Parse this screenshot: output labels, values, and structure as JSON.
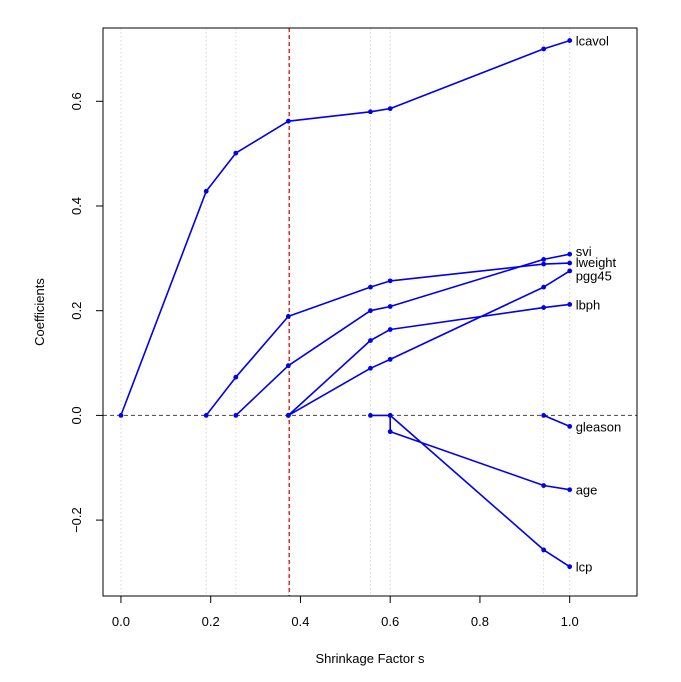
{
  "chart_data": {
    "type": "line",
    "title": "",
    "xlabel": "Shrinkage Factor s",
    "ylabel": "Coefficients",
    "xlim": [
      -0.04,
      1.15
    ],
    "ylim": [
      -0.345,
      0.74
    ],
    "xticks": [
      0.0,
      0.2,
      0.4,
      0.6,
      0.8,
      1.0
    ],
    "xtick_labels": [
      "0.0",
      "0.2",
      "0.4",
      "0.6",
      "0.8",
      "1.0"
    ],
    "yticks": [
      -0.2,
      0.0,
      0.2,
      0.4,
      0.6
    ],
    "ytick_labels": [
      "−0.2",
      "0.0",
      "0.2",
      "0.4",
      "0.6"
    ],
    "x_gridlines": [
      0.0,
      0.19,
      0.256,
      0.373,
      0.556,
      0.6,
      0.942,
      1.0
    ],
    "zero_line_y": 0.0,
    "selected_s": 0.375,
    "colors": {
      "series": "#0000ee",
      "selected_line": "#dd0000",
      "zero_line": "#444444",
      "gridline": "#d0d0d0",
      "axis": "#000000"
    },
    "series": [
      {
        "name": "lcavol",
        "points": [
          [
            0.0,
            0.0
          ],
          [
            0.19,
            0.428
          ],
          [
            0.256,
            0.501
          ],
          [
            0.373,
            0.562
          ],
          [
            0.556,
            0.58
          ],
          [
            0.6,
            0.586
          ],
          [
            0.942,
            0.7
          ],
          [
            1.0,
            0.716
          ]
        ]
      },
      {
        "name": "svi",
        "points": [
          [
            0.256,
            0.0
          ],
          [
            0.373,
            0.095
          ],
          [
            0.556,
            0.2
          ],
          [
            0.6,
            0.208
          ],
          [
            0.942,
            0.298
          ],
          [
            1.0,
            0.308
          ]
        ]
      },
      {
        "name": "lweight",
        "points": [
          [
            0.19,
            0.0
          ],
          [
            0.256,
            0.073
          ],
          [
            0.373,
            0.189
          ],
          [
            0.556,
            0.245
          ],
          [
            0.6,
            0.257
          ],
          [
            0.942,
            0.289
          ],
          [
            1.0,
            0.291
          ]
        ]
      },
      {
        "name": "pgg45",
        "points": [
          [
            0.373,
            0.0
          ],
          [
            0.556,
            0.09
          ],
          [
            0.6,
            0.107
          ],
          [
            0.942,
            0.245
          ],
          [
            1.0,
            0.276
          ]
        ]
      },
      {
        "name": "lbph",
        "points": [
          [
            0.373,
            0.0
          ],
          [
            0.556,
            0.143
          ],
          [
            0.6,
            0.164
          ],
          [
            0.942,
            0.206
          ],
          [
            1.0,
            0.212
          ]
        ]
      },
      {
        "name": "gleason",
        "points": [
          [
            0.942,
            0.0
          ],
          [
            1.0,
            -0.021
          ]
        ]
      },
      {
        "name": "age",
        "points": [
          [
            0.6,
            0.0
          ],
          [
            0.6,
            -0.031
          ],
          [
            0.942,
            -0.134
          ],
          [
            1.0,
            -0.142
          ]
        ]
      },
      {
        "name": "lcp",
        "points": [
          [
            0.556,
            0.0
          ],
          [
            0.6,
            0.0
          ],
          [
            0.942,
            -0.257
          ],
          [
            1.0,
            -0.289
          ]
        ]
      }
    ],
    "series_labels": [
      {
        "text": "lcavol",
        "y": 0.716
      },
      {
        "text": "svi",
        "y": 0.314
      },
      {
        "text": "lweight",
        "y": 0.293
      },
      {
        "text": "pgg45",
        "y": 0.267
      },
      {
        "text": "lbph",
        "y": 0.212
      },
      {
        "text": "gleason",
        "y": -0.021
      },
      {
        "text": "age",
        "y": -0.142
      },
      {
        "text": "lcp",
        "y": -0.289
      }
    ],
    "grid": "vertical dotted lines at each step",
    "legend": "none (labels at line ends)"
  }
}
